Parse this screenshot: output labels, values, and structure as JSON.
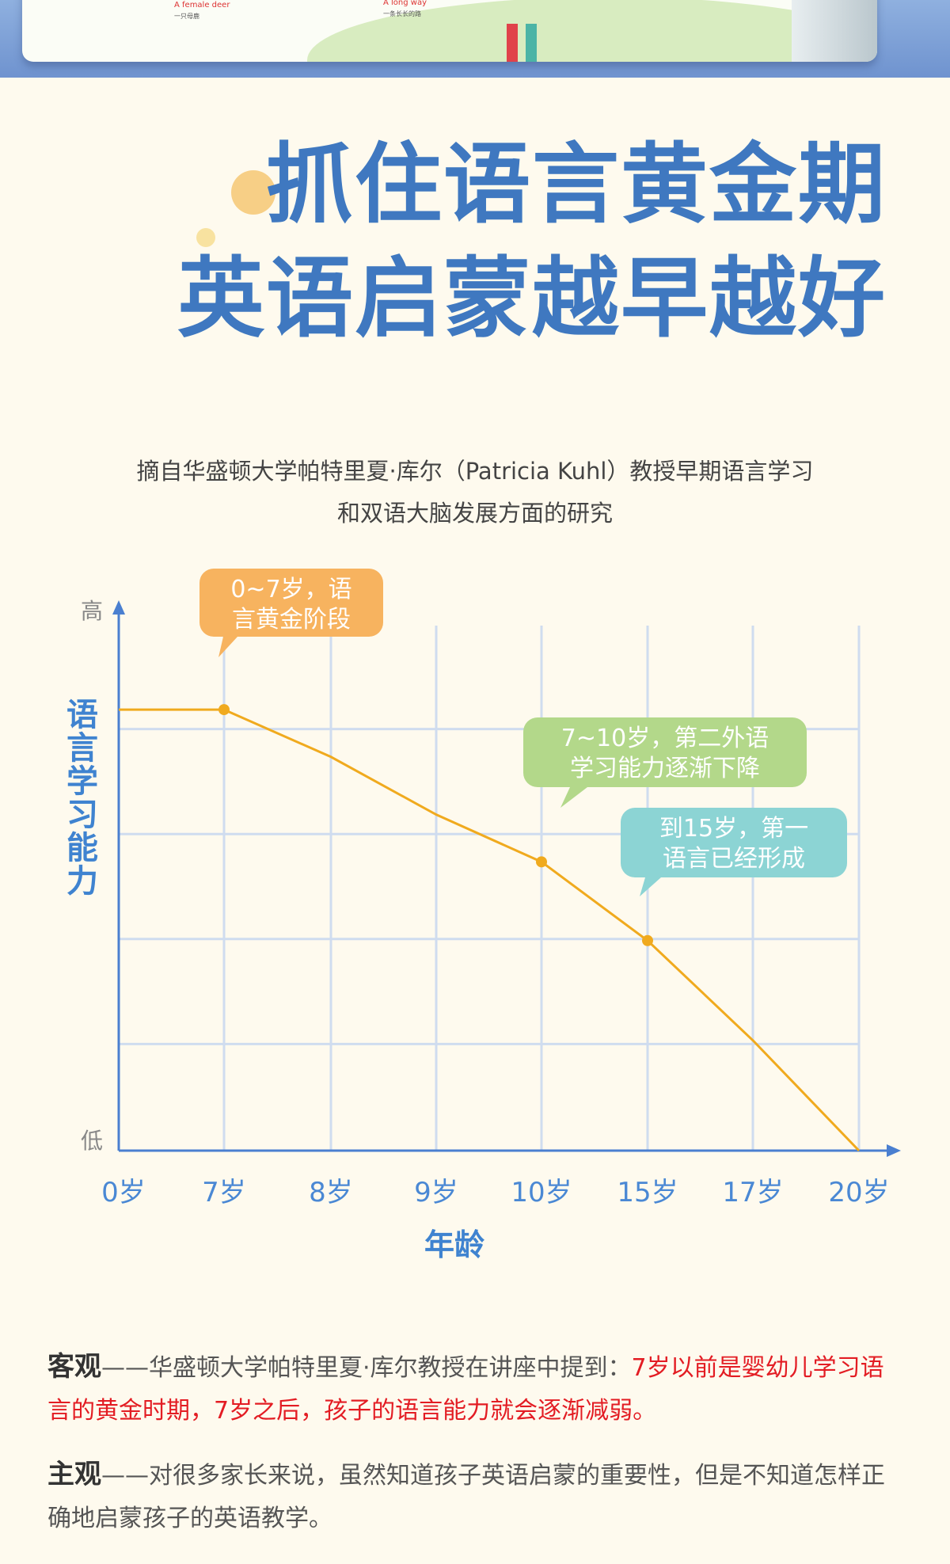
{
  "banner": {
    "caption_left": "A female deer",
    "caption_left_cn": "一只母鹿",
    "caption_right": "A long way",
    "caption_right_cn": "一条长长的路"
  },
  "headline": {
    "line1": "抓住语言黄金期",
    "line2": "英语启蒙越早越好"
  },
  "source": {
    "line1": "摘自华盛顿大学帕特里夏·库尔（Patricia Kuhl）教授早期语言学习",
    "line2": "和双语大脑发展方面的研究"
  },
  "chart_data": {
    "type": "line",
    "xlabel": "年龄",
    "ylabel": "语言学习能力",
    "y_high_label": "高",
    "y_low_label": "低",
    "categories": [
      "0岁",
      "7岁",
      "8岁",
      "9岁",
      "10岁",
      "15岁",
      "17岁",
      "20岁"
    ],
    "y_scale": "relative ability (0 = 低, 1 = 高, estimated from gridlines)",
    "values": [
      0.84,
      0.84,
      0.75,
      0.64,
      0.55,
      0.4,
      0.21,
      0.0
    ],
    "grid": true,
    "line_color": "#f0aa1e",
    "annotations": [
      {
        "at": "7岁",
        "text_line1": "0~7岁，语",
        "text_line2": "言黄金阶段",
        "color": "#f7b35f"
      },
      {
        "at": "10岁",
        "text_line1": "7~10岁，第二外语",
        "text_line2": "学习能力逐渐下降",
        "color": "#b3d88a"
      },
      {
        "at": "15岁",
        "text_line1": "到15岁，第一",
        "text_line2": "语言已经形成",
        "color": "#8cd4d4"
      }
    ],
    "marked_points": [
      "7岁",
      "10岁",
      "15岁"
    ]
  },
  "objective": {
    "label": "客观",
    "dash": "——",
    "text": "华盛顿大学帕特里夏·库尔教授在讲座中提到：",
    "highlight": "7岁以前是婴幼儿学习语言的黄金时期，7岁之后，孩子的语言能力就会逐渐减弱。"
  },
  "subjective": {
    "label": "主观",
    "dash": "——",
    "text": "对很多家长来说，虽然知道孩子英语启蒙的重要性，但是不知道怎样正确地启蒙孩子的英语教学。"
  },
  "colors": {
    "accent_blue": "#3f78c0",
    "axis_blue": "#4a7fd0",
    "grid": "#cfdcef",
    "highlight_red": "#e31c23"
  }
}
